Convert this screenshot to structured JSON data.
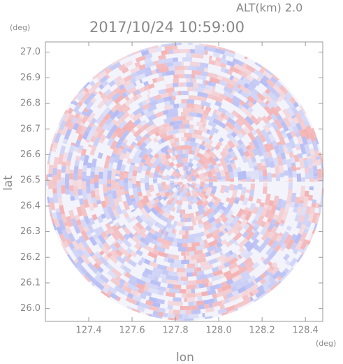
{
  "chart_data": {
    "type": "ppi",
    "title": "2017/10/24 10:59:00",
    "annotation": "ALT(km) 2.0",
    "xlabel": "lon",
    "ylabel": "lat",
    "xunit": "(deg)",
    "yunit": "(deg)",
    "xlim": [
      127.2,
      128.48
    ],
    "ylim": [
      25.95,
      27.04
    ],
    "xticks": [
      127.4,
      127.6,
      127.8,
      {
        "value": 128.0,
        "label": "128.0"
      },
      128.2,
      128.4
    ],
    "yticks": [
      {
        "value": 26.0,
        "label": "26.0"
      },
      26.1,
      26.2,
      26.3,
      26.4,
      26.5,
      26.6,
      26.7,
      26.8,
      26.9,
      {
        "value": 27.0,
        "label": "27.0"
      }
    ],
    "colors": [
      "#f4a6a6",
      "#aab2f2"
    ]
  }
}
